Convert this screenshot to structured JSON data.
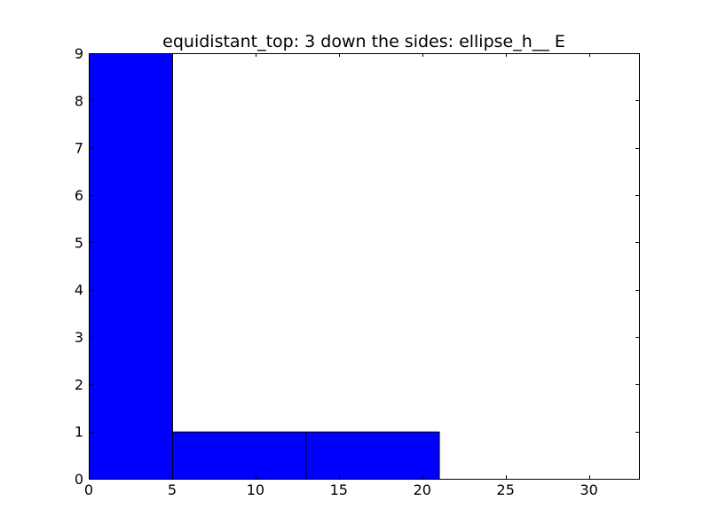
{
  "chart_data": {
    "type": "bar",
    "title": "equidistant_top: 3 down the sides: ellipse_h__ E",
    "xlabel": "",
    "ylabel": "",
    "xlim": [
      0,
      33
    ],
    "ylim": [
      0,
      9
    ],
    "bars": [
      {
        "x0": 0,
        "x1": 5,
        "value": 9
      },
      {
        "x0": 5,
        "x1": 13,
        "value": 1
      },
      {
        "x0": 13,
        "x1": 21,
        "value": 1
      }
    ],
    "x_ticks": [
      0,
      5,
      10,
      15,
      20,
      25,
      30
    ],
    "y_ticks": [
      0,
      1,
      2,
      3,
      4,
      5,
      6,
      7,
      8,
      9
    ],
    "bar_color": "#0000ff",
    "edge_color": "#000000",
    "grid": false,
    "legend": "none"
  }
}
